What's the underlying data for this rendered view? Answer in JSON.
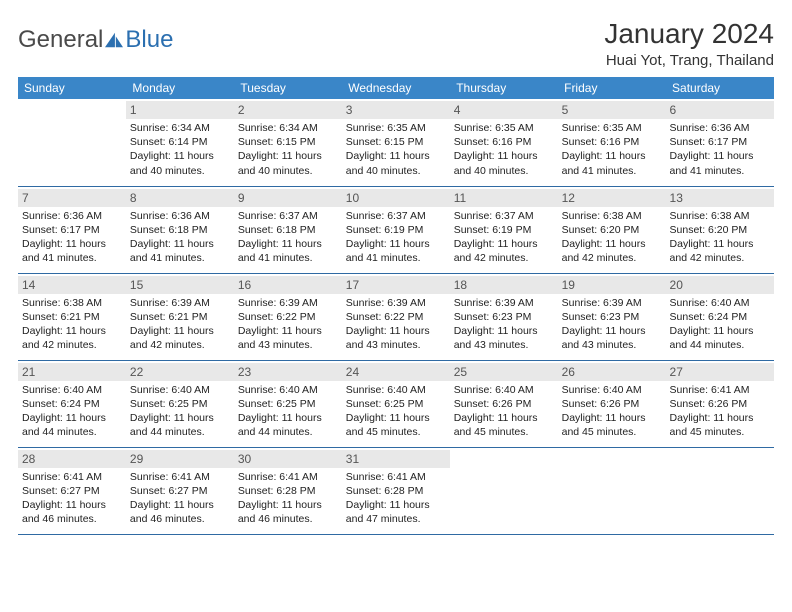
{
  "brand": {
    "part1": "General",
    "part2": "Blue"
  },
  "title": "January 2024",
  "location": "Huai Yot, Trang, Thailand",
  "colors": {
    "header_bg": "#3a86c8",
    "header_text": "#ffffff",
    "daybar_bg": "#e8e8e8",
    "border": "#2f6aa3",
    "brand_blue": "#2b6fb0",
    "brand_gray": "#4a4a4a",
    "page_bg": "#ffffff"
  },
  "weekdays": [
    "Sunday",
    "Monday",
    "Tuesday",
    "Wednesday",
    "Thursday",
    "Friday",
    "Saturday"
  ],
  "layout": {
    "first_weekday_index": 1,
    "days_in_month": 31,
    "weeks": 5
  },
  "days": {
    "1": {
      "sunrise": "6:34 AM",
      "sunset": "6:14 PM",
      "daylight": "11 hours and 40 minutes."
    },
    "2": {
      "sunrise": "6:34 AM",
      "sunset": "6:15 PM",
      "daylight": "11 hours and 40 minutes."
    },
    "3": {
      "sunrise": "6:35 AM",
      "sunset": "6:15 PM",
      "daylight": "11 hours and 40 minutes."
    },
    "4": {
      "sunrise": "6:35 AM",
      "sunset": "6:16 PM",
      "daylight": "11 hours and 40 minutes."
    },
    "5": {
      "sunrise": "6:35 AM",
      "sunset": "6:16 PM",
      "daylight": "11 hours and 41 minutes."
    },
    "6": {
      "sunrise": "6:36 AM",
      "sunset": "6:17 PM",
      "daylight": "11 hours and 41 minutes."
    },
    "7": {
      "sunrise": "6:36 AM",
      "sunset": "6:17 PM",
      "daylight": "11 hours and 41 minutes."
    },
    "8": {
      "sunrise": "6:36 AM",
      "sunset": "6:18 PM",
      "daylight": "11 hours and 41 minutes."
    },
    "9": {
      "sunrise": "6:37 AM",
      "sunset": "6:18 PM",
      "daylight": "11 hours and 41 minutes."
    },
    "10": {
      "sunrise": "6:37 AM",
      "sunset": "6:19 PM",
      "daylight": "11 hours and 41 minutes."
    },
    "11": {
      "sunrise": "6:37 AM",
      "sunset": "6:19 PM",
      "daylight": "11 hours and 42 minutes."
    },
    "12": {
      "sunrise": "6:38 AM",
      "sunset": "6:20 PM",
      "daylight": "11 hours and 42 minutes."
    },
    "13": {
      "sunrise": "6:38 AM",
      "sunset": "6:20 PM",
      "daylight": "11 hours and 42 minutes."
    },
    "14": {
      "sunrise": "6:38 AM",
      "sunset": "6:21 PM",
      "daylight": "11 hours and 42 minutes."
    },
    "15": {
      "sunrise": "6:39 AM",
      "sunset": "6:21 PM",
      "daylight": "11 hours and 42 minutes."
    },
    "16": {
      "sunrise": "6:39 AM",
      "sunset": "6:22 PM",
      "daylight": "11 hours and 43 minutes."
    },
    "17": {
      "sunrise": "6:39 AM",
      "sunset": "6:22 PM",
      "daylight": "11 hours and 43 minutes."
    },
    "18": {
      "sunrise": "6:39 AM",
      "sunset": "6:23 PM",
      "daylight": "11 hours and 43 minutes."
    },
    "19": {
      "sunrise": "6:39 AM",
      "sunset": "6:23 PM",
      "daylight": "11 hours and 43 minutes."
    },
    "20": {
      "sunrise": "6:40 AM",
      "sunset": "6:24 PM",
      "daylight": "11 hours and 44 minutes."
    },
    "21": {
      "sunrise": "6:40 AM",
      "sunset": "6:24 PM",
      "daylight": "11 hours and 44 minutes."
    },
    "22": {
      "sunrise": "6:40 AM",
      "sunset": "6:25 PM",
      "daylight": "11 hours and 44 minutes."
    },
    "23": {
      "sunrise": "6:40 AM",
      "sunset": "6:25 PM",
      "daylight": "11 hours and 44 minutes."
    },
    "24": {
      "sunrise": "6:40 AM",
      "sunset": "6:25 PM",
      "daylight": "11 hours and 45 minutes."
    },
    "25": {
      "sunrise": "6:40 AM",
      "sunset": "6:26 PM",
      "daylight": "11 hours and 45 minutes."
    },
    "26": {
      "sunrise": "6:40 AM",
      "sunset": "6:26 PM",
      "daylight": "11 hours and 45 minutes."
    },
    "27": {
      "sunrise": "6:41 AM",
      "sunset": "6:26 PM",
      "daylight": "11 hours and 45 minutes."
    },
    "28": {
      "sunrise": "6:41 AM",
      "sunset": "6:27 PM",
      "daylight": "11 hours and 46 minutes."
    },
    "29": {
      "sunrise": "6:41 AM",
      "sunset": "6:27 PM",
      "daylight": "11 hours and 46 minutes."
    },
    "30": {
      "sunrise": "6:41 AM",
      "sunset": "6:28 PM",
      "daylight": "11 hours and 46 minutes."
    },
    "31": {
      "sunrise": "6:41 AM",
      "sunset": "6:28 PM",
      "daylight": "11 hours and 47 minutes."
    }
  },
  "labels": {
    "sunrise_prefix": "Sunrise: ",
    "sunset_prefix": "Sunset: ",
    "daylight_prefix": "Daylight: "
  }
}
